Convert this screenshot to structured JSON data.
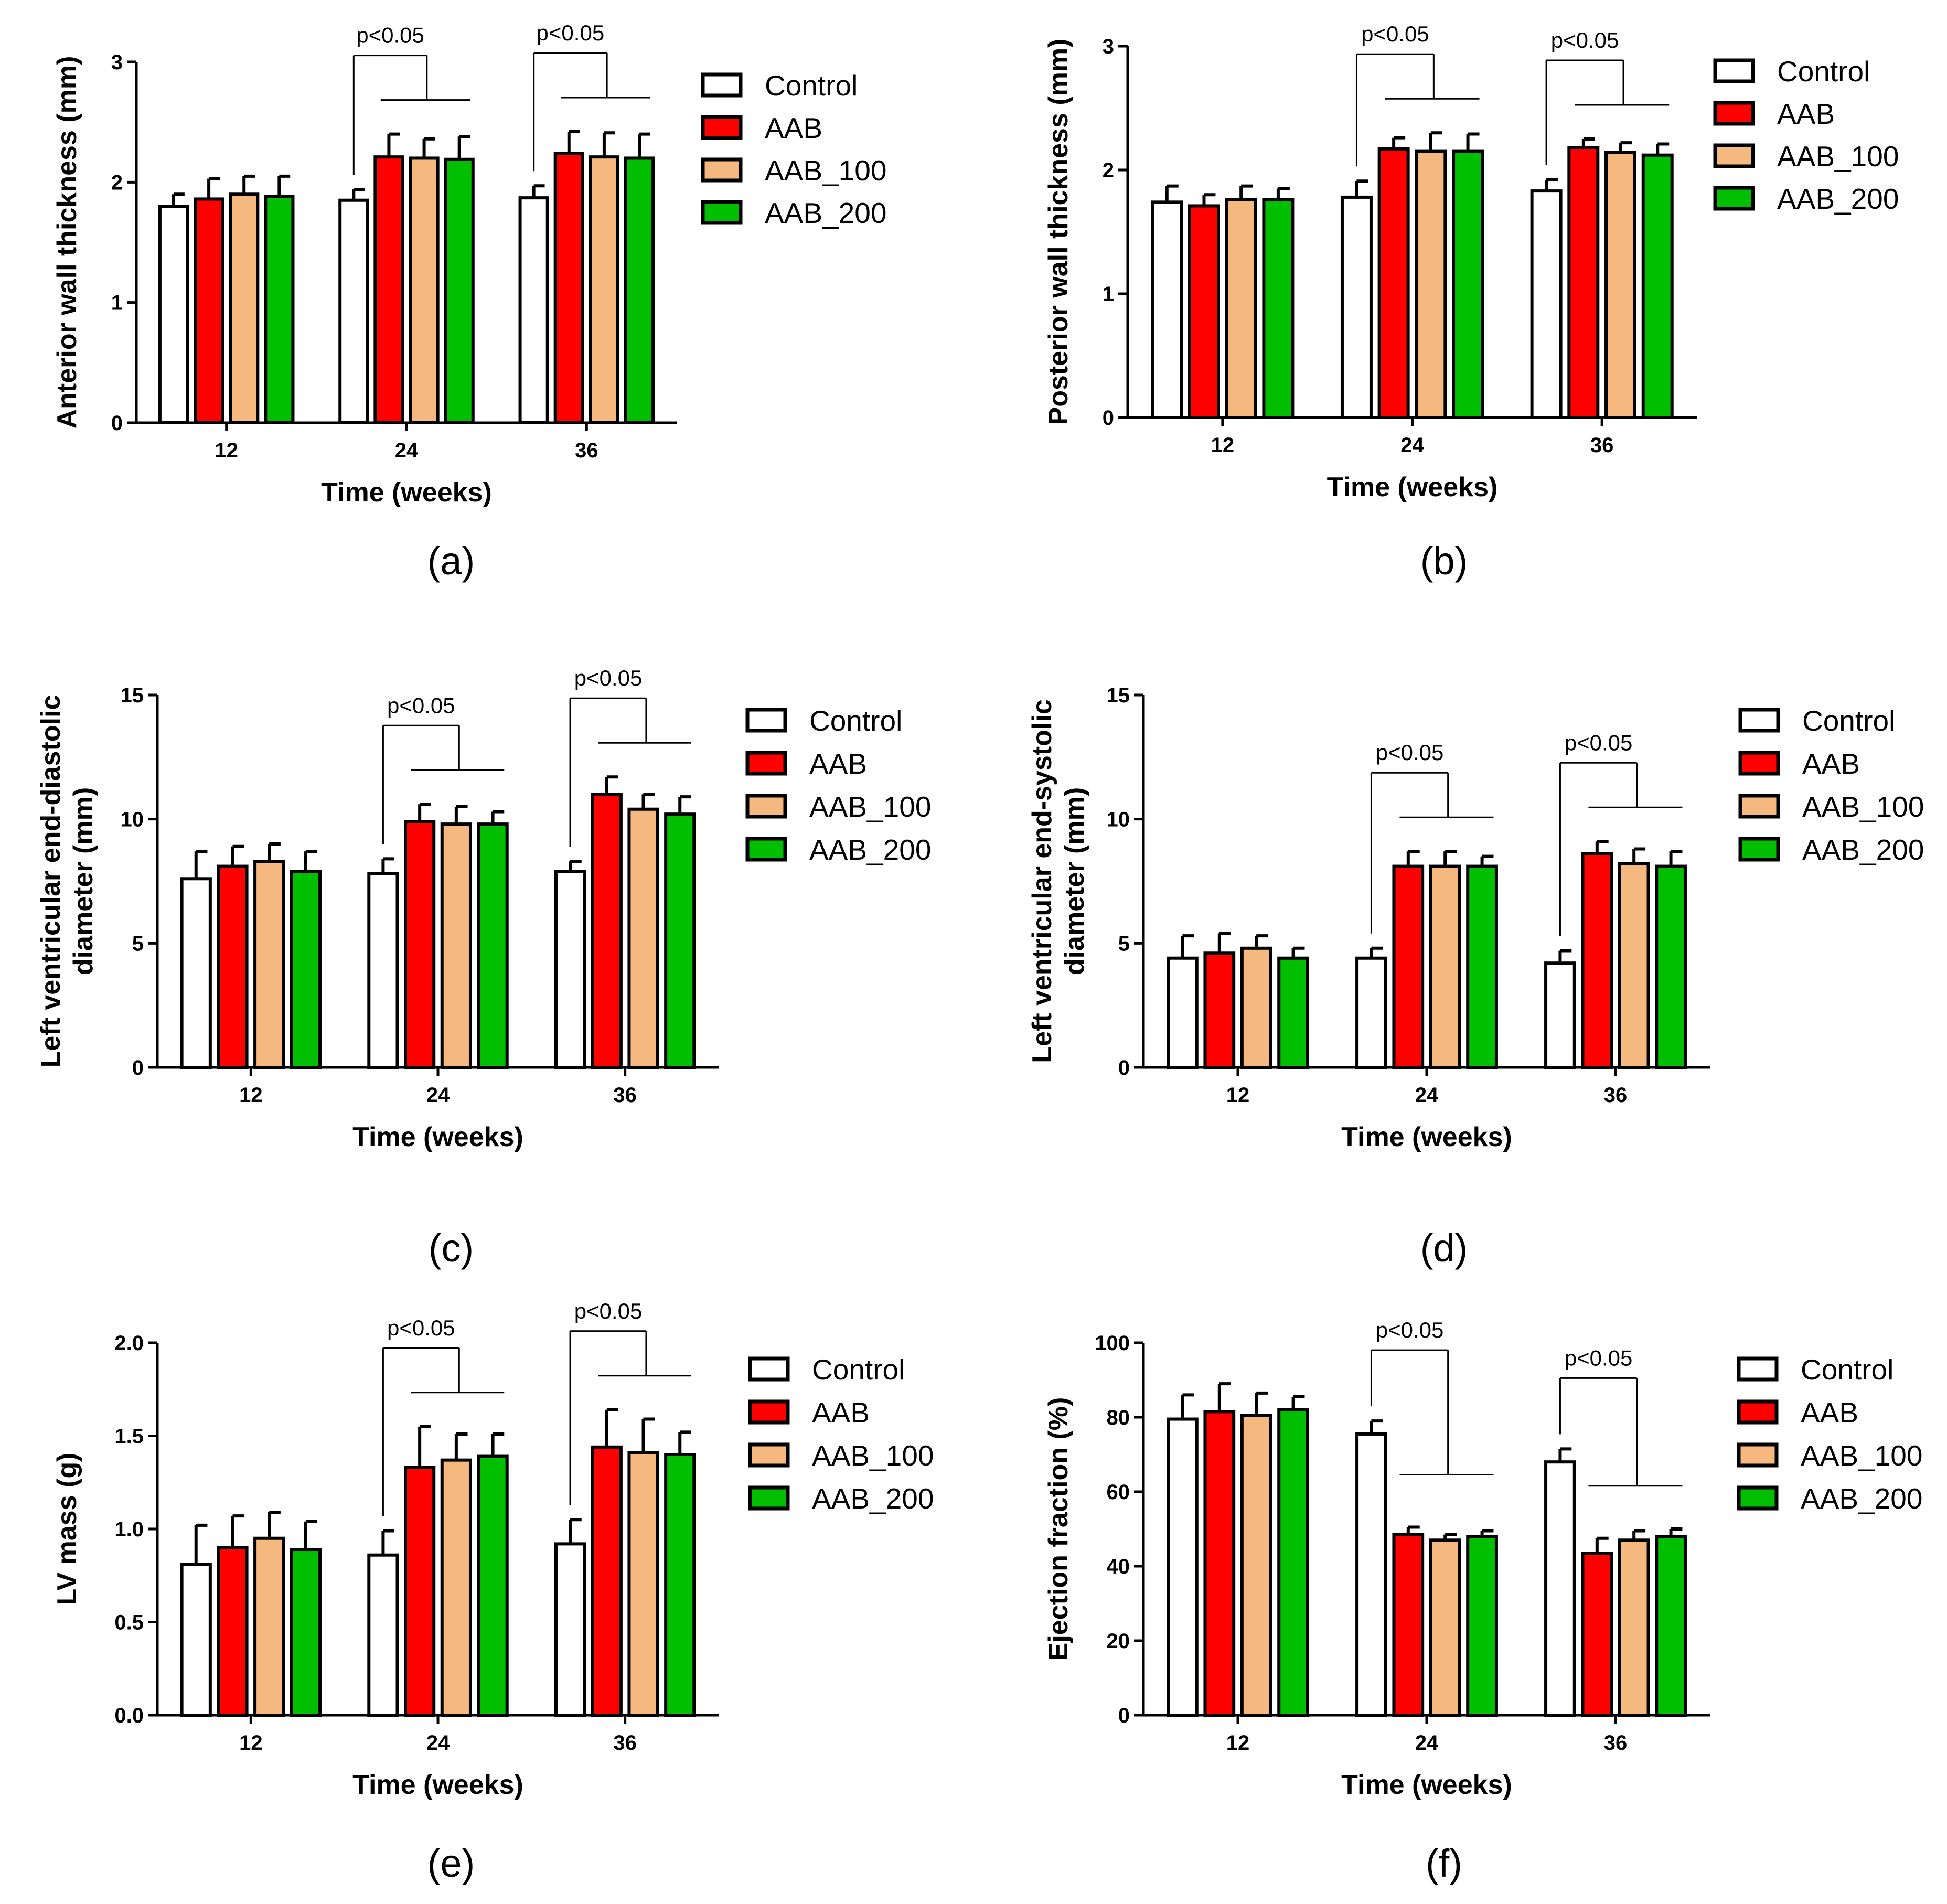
{
  "figure": {
    "groups": [
      "12",
      "24",
      "36"
    ],
    "xlabel": "Time (weeks)",
    "legend": [
      {
        "label": "Control",
        "color": "#ffffff"
      },
      {
        "label": "AAB",
        "color": "#ff0000"
      },
      {
        "label": "AAB_100",
        "color": "#f5b97f"
      },
      {
        "label": "AAB_200",
        "color": "#00bf00"
      }
    ]
  },
  "chart_data": [
    {
      "type": "bar",
      "caption": "(a)",
      "ylabel": [
        "Anterior wall thickness (mm)"
      ],
      "xlabel": "Time (weeks)",
      "categories": [
        "12",
        "24",
        "36"
      ],
      "ylim": [
        0,
        3
      ],
      "yticks": [
        "0",
        "1",
        "2",
        "3"
      ],
      "series": [
        {
          "name": "Control",
          "values": [
            1.8,
            1.85,
            1.87
          ],
          "errors": [
            0.1,
            0.09,
            0.1
          ]
        },
        {
          "name": "AAB",
          "values": [
            1.86,
            2.21,
            2.24
          ],
          "errors": [
            0.17,
            0.19,
            0.18
          ]
        },
        {
          "name": "AAB_100",
          "values": [
            1.9,
            2.2,
            2.21
          ],
          "errors": [
            0.15,
            0.16,
            0.2
          ]
        },
        {
          "name": "AAB_200",
          "values": [
            1.88,
            2.19,
            2.2
          ],
          "errors": [
            0.17,
            0.19,
            0.2
          ]
        }
      ],
      "annotations": [
        {
          "text": "p<0.05",
          "group": "24"
        },
        {
          "text": "p<0.05",
          "group": "36"
        }
      ]
    },
    {
      "type": "bar",
      "caption": "(b)",
      "ylabel": [
        "Posterior wall thickness (mm)"
      ],
      "xlabel": "Time (weeks)",
      "categories": [
        "12",
        "24",
        "36"
      ],
      "ylim": [
        0,
        3
      ],
      "yticks": [
        "0",
        "1",
        "2",
        "3"
      ],
      "series": [
        {
          "name": "Control",
          "values": [
            1.74,
            1.78,
            1.83
          ],
          "errors": [
            0.13,
            0.13,
            0.09
          ]
        },
        {
          "name": "AAB",
          "values": [
            1.71,
            2.17,
            2.18
          ],
          "errors": [
            0.09,
            0.09,
            0.07
          ]
        },
        {
          "name": "AAB_100",
          "values": [
            1.76,
            2.15,
            2.14
          ],
          "errors": [
            0.11,
            0.15,
            0.08
          ]
        },
        {
          "name": "AAB_200",
          "values": [
            1.76,
            2.15,
            2.12
          ],
          "errors": [
            0.09,
            0.14,
            0.09
          ]
        }
      ],
      "annotations": [
        {
          "text": "p<0.05",
          "group": "24"
        },
        {
          "text": "p<0.05",
          "group": "36"
        }
      ]
    },
    {
      "type": "bar",
      "caption": "(c)",
      "ylabel": [
        "Left ventricular end-diastolic",
        "diameter (mm)"
      ],
      "xlabel": "Time (weeks)",
      "categories": [
        "12",
        "24",
        "36"
      ],
      "ylim": [
        0,
        15
      ],
      "yticks": [
        "0",
        "5",
        "10",
        "15"
      ],
      "series": [
        {
          "name": "Control",
          "values": [
            7.6,
            7.8,
            7.9
          ],
          "errors": [
            1.1,
            0.6,
            0.4
          ]
        },
        {
          "name": "AAB",
          "values": [
            8.1,
            9.9,
            11.0
          ],
          "errors": [
            0.8,
            0.7,
            0.7
          ]
        },
        {
          "name": "AAB_100",
          "values": [
            8.3,
            9.8,
            10.4
          ],
          "errors": [
            0.7,
            0.7,
            0.6
          ]
        },
        {
          "name": "AAB_200",
          "values": [
            7.9,
            9.8,
            10.2
          ],
          "errors": [
            0.8,
            0.5,
            0.7
          ]
        }
      ],
      "annotations": [
        {
          "text": "p<0.05",
          "group": "24"
        },
        {
          "text": "p<0.05",
          "group": "36"
        }
      ]
    },
    {
      "type": "bar",
      "caption": "(d)",
      "ylabel": [
        "Left ventricular end-systolic",
        "diameter (mm)"
      ],
      "xlabel": "Time (weeks)",
      "categories": [
        "12",
        "24",
        "36"
      ],
      "ylim": [
        0,
        15
      ],
      "yticks": [
        "0",
        "5",
        "10",
        "15"
      ],
      "series": [
        {
          "name": "Control",
          "values": [
            4.4,
            4.4,
            4.2
          ],
          "errors": [
            0.9,
            0.4,
            0.5
          ]
        },
        {
          "name": "AAB",
          "values": [
            4.6,
            8.1,
            8.6
          ],
          "errors": [
            0.8,
            0.6,
            0.5
          ]
        },
        {
          "name": "AAB_100",
          "values": [
            4.8,
            8.1,
            8.2
          ],
          "errors": [
            0.5,
            0.6,
            0.6
          ]
        },
        {
          "name": "AAB_200",
          "values": [
            4.4,
            8.1,
            8.1
          ],
          "errors": [
            0.4,
            0.4,
            0.6
          ]
        }
      ],
      "annotations": [
        {
          "text": "p<0.05",
          "group": "24"
        },
        {
          "text": "p<0.05",
          "group": "36"
        }
      ]
    },
    {
      "type": "bar",
      "caption": "(e)",
      "ylabel": [
        "LV mass (g)"
      ],
      "xlabel": "Time (weeks)",
      "categories": [
        "12",
        "24",
        "36"
      ],
      "ylim": [
        0,
        2.0
      ],
      "yticks": [
        "0.0",
        "0.5",
        "1.0",
        "1.5",
        "2.0"
      ],
      "series": [
        {
          "name": "Control",
          "values": [
            0.81,
            0.86,
            0.92
          ],
          "errors": [
            0.21,
            0.13,
            0.13
          ]
        },
        {
          "name": "AAB",
          "values": [
            0.9,
            1.33,
            1.44
          ],
          "errors": [
            0.17,
            0.22,
            0.2
          ]
        },
        {
          "name": "AAB_100",
          "values": [
            0.95,
            1.37,
            1.41
          ],
          "errors": [
            0.14,
            0.14,
            0.18
          ]
        },
        {
          "name": "AAB_200",
          "values": [
            0.89,
            1.39,
            1.4
          ],
          "errors": [
            0.15,
            0.12,
            0.12
          ]
        }
      ],
      "annotations": [
        {
          "text": "p<0.05",
          "group": "24"
        },
        {
          "text": "p<0.05",
          "group": "36"
        }
      ]
    },
    {
      "type": "bar",
      "caption": "(f)",
      "ylabel": [
        "Ejection fraction (%)"
      ],
      "xlabel": "Time (weeks)",
      "categories": [
        "12",
        "24",
        "36"
      ],
      "ylim": [
        0,
        100
      ],
      "yticks": [
        "0",
        "20",
        "40",
        "60",
        "80",
        "100"
      ],
      "series": [
        {
          "name": "Control",
          "values": [
            79.5,
            75.5,
            68.0
          ],
          "errors": [
            6.5,
            3.5,
            3.5
          ]
        },
        {
          "name": "AAB",
          "values": [
            81.5,
            48.5,
            43.5
          ],
          "errors": [
            7.5,
            2.0,
            4.0
          ]
        },
        {
          "name": "AAB_100",
          "values": [
            80.5,
            47.0,
            47.0
          ],
          "errors": [
            6.0,
            1.5,
            2.5
          ]
        },
        {
          "name": "AAB_200",
          "values": [
            82.0,
            48.0,
            48.0
          ],
          "errors": [
            3.5,
            1.5,
            2.0
          ]
        }
      ],
      "annotations": [
        {
          "text": "p<0.05",
          "group": "24"
        },
        {
          "text": "p<0.05",
          "group": "36"
        }
      ]
    }
  ]
}
